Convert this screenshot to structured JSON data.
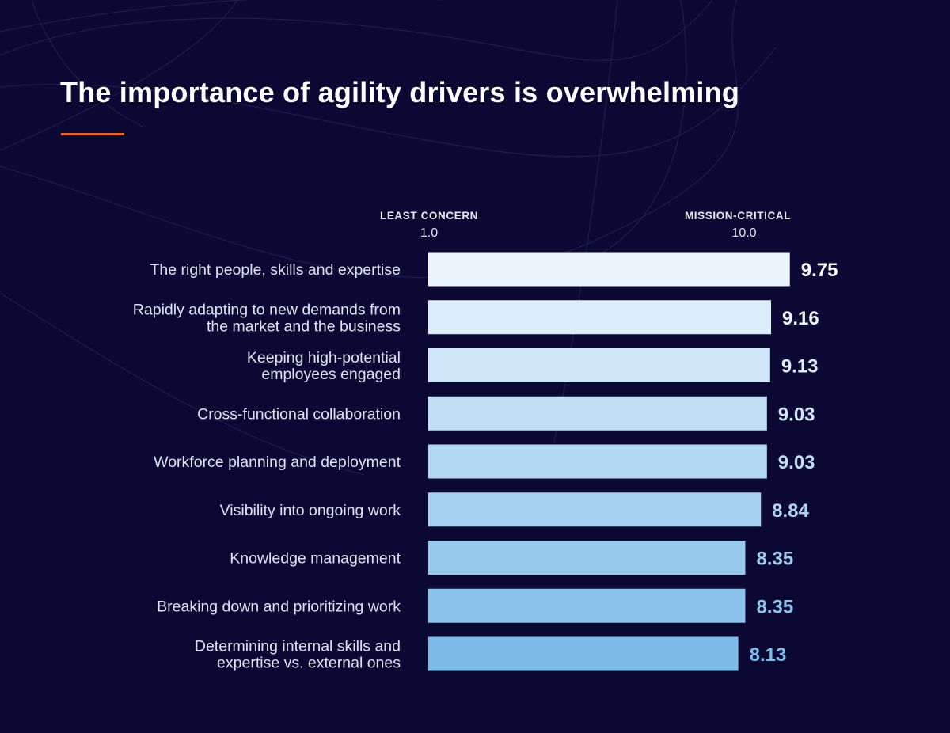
{
  "title": "The importance of agility drivers is overwhelming",
  "colors": {
    "background": "#0b0834",
    "accent": "#e8622f",
    "bar_start": "#e9f4fc",
    "bar_end": "#7cbbe9"
  },
  "scale": {
    "min_label": "LEAST CONCERN",
    "min_value": "1.0",
    "max_label": "MISSION-CRITICAL",
    "max_value": "10.0"
  },
  "chart_data": {
    "type": "bar",
    "orientation": "horizontal",
    "title": "The importance of agility drivers is overwhelming",
    "xlabel": "",
    "ylabel": "",
    "xlim": [
      1.0,
      10.0
    ],
    "grid": false,
    "categories": [
      [
        "The right people, skills and expertise"
      ],
      [
        "Rapidly adapting to new demands from",
        "the market and the business"
      ],
      [
        "Keeping high-potential",
        "employees engaged"
      ],
      [
        "Cross-functional collaboration"
      ],
      [
        "Workforce planning and deployment"
      ],
      [
        "Visibility into ongoing work"
      ],
      [
        "Knowledge management"
      ],
      [
        "Breaking down and prioritizing work"
      ],
      [
        "Determining internal skills and",
        "expertise vs. external ones"
      ]
    ],
    "values": [
      9.75,
      9.16,
      9.13,
      9.03,
      9.03,
      8.84,
      8.35,
      8.35,
      8.13
    ],
    "value_labels": [
      "9.75",
      "9.16",
      "9.13",
      "9.03",
      "9.03",
      "8.84",
      "8.35",
      "8.35",
      "8.13"
    ]
  }
}
